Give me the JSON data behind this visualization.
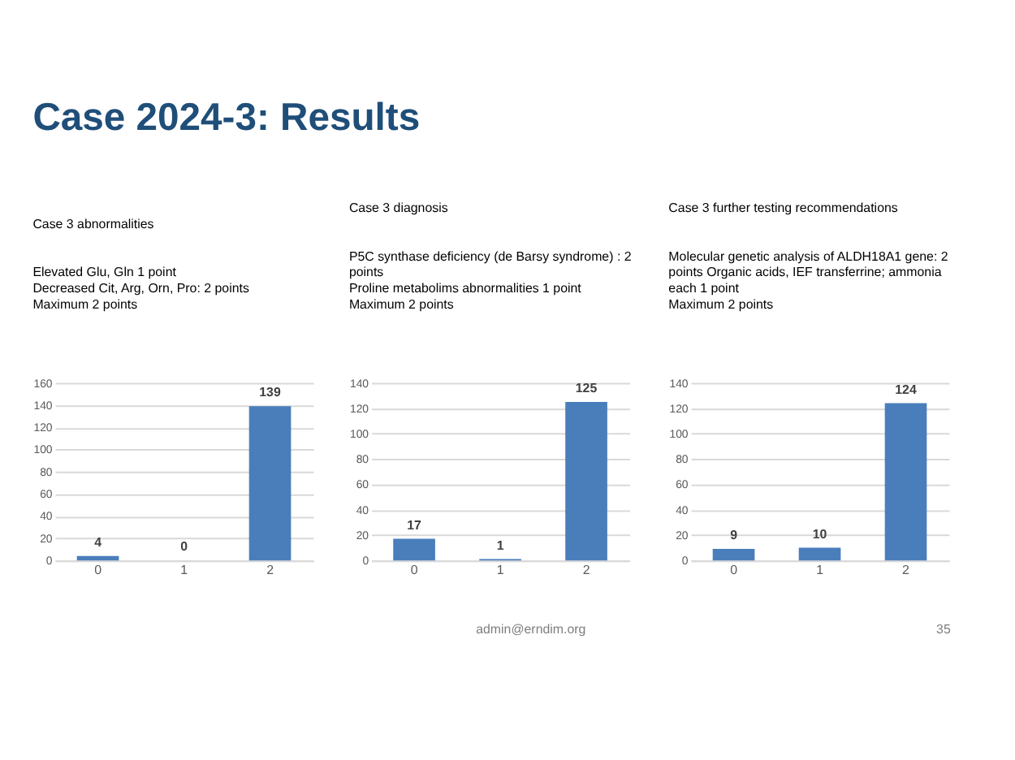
{
  "chart_data": [
    {
      "type": "other",
      "title": "Case 2024-3: Results",
      "annotations": [
        "admin@erndim.org",
        "35"
      ]
    },
    {
      "type": "bar",
      "title": "Case 3 abnormalities",
      "subtitle": "Elevated Glu, Gln 1 point\nDecreased Cit, Arg, Orn, Pro: 2 points\nMaximum 2 points",
      "categories": [
        "0",
        "1",
        "2"
      ],
      "values": [
        4,
        0,
        139
      ],
      "color": "#4a7ebb",
      "ylim": [
        0,
        160
      ],
      "yticks": [
        0,
        20,
        40,
        60,
        80,
        100,
        120,
        140,
        160
      ],
      "grid": "y",
      "data_labels": true
    },
    {
      "type": "bar",
      "title": "Case 3 diagnosis",
      "subtitle": "P5C synthase deficiency (de Barsy syndrome) : 2\npoints\nProline metabolims abnormalities 1 point\nMaximum 2 points",
      "categories": [
        "0",
        "1",
        "2"
      ],
      "values": [
        17,
        1,
        125
      ],
      "color": "#4a7ebb",
      "ylim": [
        0,
        140
      ],
      "yticks": [
        0,
        20,
        40,
        60,
        80,
        100,
        120,
        140
      ],
      "grid": "y",
      "data_labels": true
    },
    {
      "type": "bar",
      "title": "Case 3 further testing recommendations",
      "subtitle": "Molecular genetic analysis of ALDH18A1 gene: 2\npoints Organic acids, IEF transferrine; ammonia\neach 1 point\nMaximum 2 points",
      "categories": [
        "0",
        "1",
        "2"
      ],
      "values": [
        9,
        10,
        124
      ],
      "color": "#4a7ebb",
      "ylim": [
        0,
        140
      ],
      "yticks": [
        0,
        20,
        40,
        60,
        80,
        100,
        120,
        140
      ],
      "grid": "y",
      "data_labels": true
    }
  ]
}
